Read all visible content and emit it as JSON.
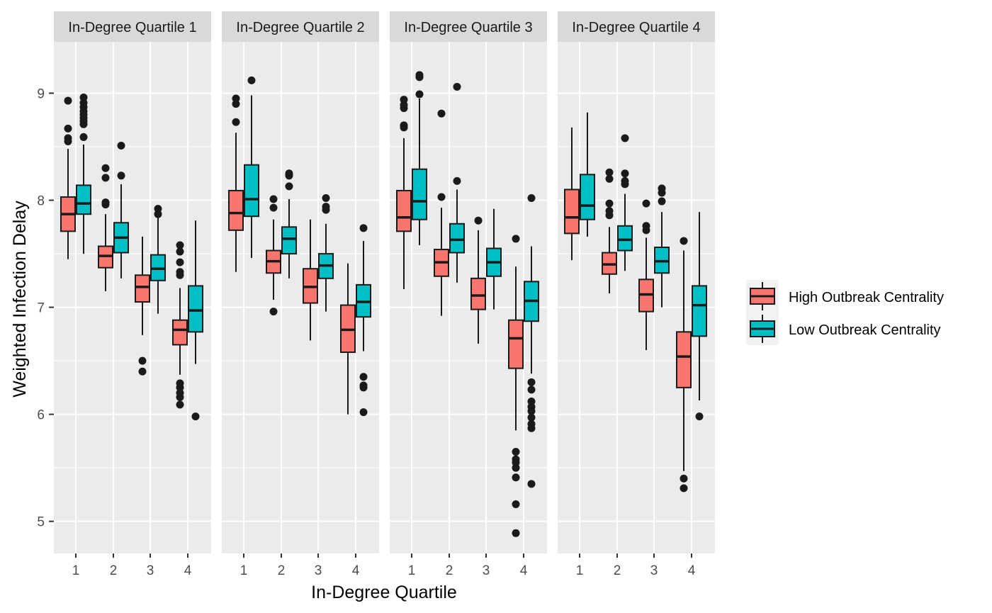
{
  "chart_data": {
    "type": "box",
    "xlabel": "In-Degree Quartile",
    "ylabel": "Weighted Infection Delay",
    "ylim": [
      4.7,
      9.48
    ],
    "y_ticks": [
      "5",
      "6",
      "7",
      "8",
      "9"
    ],
    "categories": [
      "1",
      "2",
      "3",
      "4"
    ],
    "legend": {
      "position": "right"
    },
    "grid": true,
    "series_colors": [
      "#F8766D",
      "#00BFC4"
    ],
    "series": [
      {
        "name": "High Outbreak Centrality"
      },
      {
        "name": "Low Outbreak Centrality"
      }
    ],
    "panels": [
      {
        "title": "In-Degree Quartile 1",
        "groups": [
          {
            "x": "1",
            "high": {
              "min": 7.45,
              "q1": 7.71,
              "median": 7.87,
              "q3": 8.03,
              "max": 8.48,
              "outliers": [
                8.55,
                8.58,
                8.67,
                8.93
              ]
            },
            "low": {
              "min": 7.5,
              "q1": 7.87,
              "median": 7.97,
              "q3": 8.14,
              "max": 8.52,
              "outliers": [
                8.59,
                8.71,
                8.74,
                8.77,
                8.8,
                8.83,
                8.87,
                8.91,
                8.96
              ]
            }
          },
          {
            "x": "2",
            "high": {
              "min": 7.15,
              "q1": 7.37,
              "median": 7.48,
              "q3": 7.57,
              "max": 7.87,
              "outliers": [
                7.96,
                7.98,
                8.21,
                8.3
              ]
            },
            "low": {
              "min": 7.27,
              "q1": 7.51,
              "median": 7.65,
              "q3": 7.79,
              "max": 8.15,
              "outliers": [
                8.23,
                8.51
              ]
            }
          },
          {
            "x": "3",
            "high": {
              "min": 6.74,
              "q1": 7.05,
              "median": 7.19,
              "q3": 7.3,
              "max": 7.66,
              "outliers": [
                6.4,
                6.5
              ]
            },
            "low": {
              "min": 6.94,
              "q1": 7.25,
              "median": 7.36,
              "q3": 7.49,
              "max": 7.84,
              "outliers": [
                7.87,
                7.92
              ]
            }
          },
          {
            "x": "4",
            "high": {
              "min": 6.37,
              "q1": 6.65,
              "median": 6.79,
              "q3": 6.88,
              "max": 7.18,
              "outliers": [
                6.09,
                6.16,
                6.2,
                6.25,
                6.29,
                7.3,
                7.33,
                7.42,
                7.52,
                7.58
              ]
            },
            "low": {
              "min": 6.47,
              "q1": 6.77,
              "median": 6.97,
              "q3": 7.2,
              "max": 7.81,
              "outliers": [
                5.98
              ]
            }
          }
        ]
      },
      {
        "title": "In-Degree Quartile 2",
        "groups": [
          {
            "x": "1",
            "high": {
              "min": 7.33,
              "q1": 7.72,
              "median": 7.88,
              "q3": 8.09,
              "max": 8.63,
              "outliers": [
                8.73,
                8.9,
                8.95
              ]
            },
            "low": {
              "min": 7.46,
              "q1": 7.85,
              "median": 8.01,
              "q3": 8.33,
              "max": 8.98,
              "outliers": [
                9.12
              ]
            }
          },
          {
            "x": "2",
            "high": {
              "min": 7.07,
              "q1": 7.32,
              "median": 7.43,
              "q3": 7.53,
              "max": 7.82,
              "outliers": [
                6.96,
                7.93,
                8.01
              ]
            },
            "low": {
              "min": 7.27,
              "q1": 7.5,
              "median": 7.64,
              "q3": 7.75,
              "max": 8.01,
              "outliers": [
                8.13,
                8.23,
                8.25
              ]
            }
          },
          {
            "x": "3",
            "high": {
              "min": 6.69,
              "q1": 7.04,
              "median": 7.19,
              "q3": 7.36,
              "max": 7.82,
              "outliers": []
            },
            "low": {
              "min": 6.96,
              "q1": 7.27,
              "median": 7.39,
              "q3": 7.5,
              "max": 7.78,
              "outliers": [
                7.91,
                7.94,
                8.02
              ]
            }
          },
          {
            "x": "4",
            "high": {
              "min": 6.0,
              "q1": 6.58,
              "median": 6.79,
              "q3": 7.02,
              "max": 7.41,
              "outliers": []
            },
            "low": {
              "min": 6.59,
              "q1": 6.91,
              "median": 7.05,
              "q3": 7.21,
              "max": 7.62,
              "outliers": [
                6.02,
                6.25,
                6.27,
                6.35,
                7.74
              ]
            }
          }
        ]
      },
      {
        "title": "In-Degree Quartile 3",
        "groups": [
          {
            "x": "1",
            "high": {
              "min": 7.17,
              "q1": 7.71,
              "median": 7.84,
              "q3": 8.09,
              "max": 8.58,
              "outliers": [
                8.68,
                8.7,
                8.86,
                8.89,
                8.94
              ]
            },
            "low": {
              "min": 7.58,
              "q1": 7.82,
              "median": 7.99,
              "q3": 8.29,
              "max": 8.95,
              "outliers": [
                8.99,
                9.15,
                9.17
              ]
            }
          },
          {
            "x": "2",
            "high": {
              "min": 6.92,
              "q1": 7.29,
              "median": 7.42,
              "q3": 7.54,
              "max": 7.93,
              "outliers": [
                8.03,
                8.81
              ]
            },
            "low": {
              "min": 7.23,
              "q1": 7.51,
              "median": 7.63,
              "q3": 7.78,
              "max": 8.1,
              "outliers": [
                8.18,
                9.06
              ]
            }
          },
          {
            "x": "3",
            "high": {
              "min": 6.66,
              "q1": 6.98,
              "median": 7.11,
              "q3": 7.27,
              "max": 7.72,
              "outliers": [
                7.81
              ]
            },
            "low": {
              "min": 6.98,
              "q1": 7.29,
              "median": 7.42,
              "q3": 7.55,
              "max": 7.92,
              "outliers": []
            }
          },
          {
            "x": "4",
            "high": {
              "min": 5.85,
              "q1": 6.43,
              "median": 6.71,
              "q3": 6.88,
              "max": 7.38,
              "outliers": [
                4.89,
                5.16,
                5.41,
                5.5,
                5.55,
                5.58,
                5.65,
                7.64
              ]
            },
            "low": {
              "min": 6.38,
              "q1": 6.87,
              "median": 7.06,
              "q3": 7.24,
              "max": 7.57,
              "outliers": [
                5.35,
                5.87,
                5.91,
                5.97,
                6.03,
                6.07,
                6.12,
                6.23,
                6.3,
                8.02
              ]
            }
          }
        ]
      },
      {
        "title": "In-Degree Quartile 4",
        "groups": [
          {
            "x": "1",
            "high": {
              "min": 7.44,
              "q1": 7.69,
              "median": 7.84,
              "q3": 8.1,
              "max": 8.68,
              "outliers": []
            },
            "low": {
              "min": 7.66,
              "q1": 7.82,
              "median": 7.95,
              "q3": 8.24,
              "max": 8.82,
              "outliers": []
            }
          },
          {
            "x": "2",
            "high": {
              "min": 7.13,
              "q1": 7.31,
              "median": 7.4,
              "q3": 7.51,
              "max": 7.75,
              "outliers": [
                7.86,
                7.9,
                7.97,
                8.2,
                8.26
              ]
            },
            "low": {
              "min": 7.34,
              "q1": 7.53,
              "median": 7.63,
              "q3": 7.76,
              "max": 8.06,
              "outliers": [
                8.15,
                8.18,
                8.25,
                8.58
              ]
            }
          },
          {
            "x": "3",
            "high": {
              "min": 6.6,
              "q1": 6.96,
              "median": 7.12,
              "q3": 7.26,
              "max": 7.65,
              "outliers": [
                7.72,
                7.76,
                7.97
              ]
            },
            "low": {
              "min": 7.0,
              "q1": 7.32,
              "median": 7.43,
              "q3": 7.56,
              "max": 7.89,
              "outliers": [
                7.99,
                8.07,
                8.11
              ]
            }
          },
          {
            "x": "4",
            "high": {
              "min": 5.47,
              "q1": 6.25,
              "median": 6.54,
              "q3": 6.77,
              "max": 7.53,
              "outliers": [
                5.31,
                5.4,
                7.62
              ]
            },
            "low": {
              "min": 6.13,
              "q1": 6.73,
              "median": 7.02,
              "q3": 7.2,
              "max": 7.89,
              "outliers": [
                5.98
              ]
            }
          }
        ]
      }
    ]
  }
}
